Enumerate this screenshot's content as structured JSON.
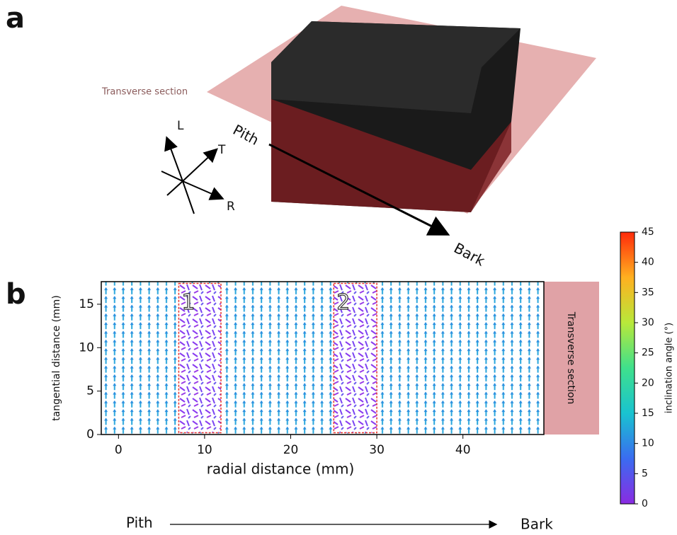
{
  "panel_a": {
    "letter": "a",
    "plane_label": "Transverse section",
    "axis_L": "L",
    "axis_T": "T",
    "axis_R": "R",
    "pith": "Pith",
    "bark": "Bark"
  },
  "chart_data": {
    "type": "quiver",
    "panel_letter": "b",
    "xlabel": "radial distance (mm)",
    "ylabel": "tangential distance (mm)",
    "xlim": [
      -2,
      49.4
    ],
    "ylim": [
      0,
      17.6
    ],
    "xticks": [
      0,
      10,
      20,
      30,
      40
    ],
    "yticks": [
      0,
      5,
      10,
      15
    ],
    "regions": [
      {
        "label": "1",
        "x": [
          7,
          11.9
        ],
        "y": [
          0.2,
          17.4
        ]
      },
      {
        "label": "2",
        "x": [
          25,
          30
        ],
        "y": [
          0.2,
          17.4
        ]
      }
    ],
    "region_color": "#e8332a",
    "side_label": "Transverse section",
    "colorbar": {
      "label": "inclination angle (°)",
      "lim": [
        0,
        45
      ],
      "ticks": [
        0,
        5,
        10,
        15,
        20,
        25,
        30,
        35,
        40,
        45
      ],
      "colors": [
        "#8a2be2",
        "#3a6cf0",
        "#19c3d0",
        "#3fe08c",
        "#b8e83a",
        "#ffb020",
        "#ff2a0a"
      ]
    },
    "pith": "Pith",
    "bark": "Bark"
  }
}
